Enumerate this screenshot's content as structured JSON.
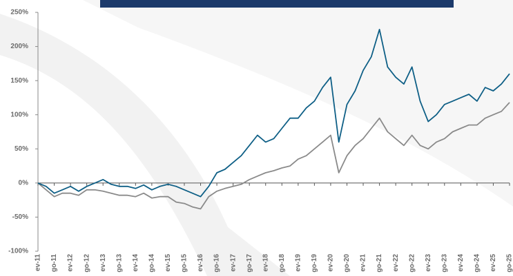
{
  "chart_data": {
    "type": "line",
    "categories": [
      "ev-11",
      null,
      "go-11",
      null,
      "ev-12",
      null,
      "go-12",
      null,
      "ev-13",
      null,
      "go-13",
      null,
      "ev-14",
      null,
      "go-14",
      null,
      "ev-15",
      null,
      "go-15",
      null,
      "ev-16",
      null,
      "go-16",
      null,
      "ev-17",
      null,
      "go-17",
      null,
      "ev-18",
      null,
      "go-18",
      null,
      "ev-19",
      null,
      "go-19",
      null,
      "ev-20",
      null,
      "go-20",
      null,
      "ev-21",
      null,
      "go-21",
      null,
      "ev-22",
      null,
      "go-22",
      null,
      "ev-23",
      null,
      "go-23",
      null,
      "ev-24",
      null,
      "go-24",
      null,
      "ev-25",
      null,
      "go-25"
    ],
    "series": [
      {
        "color": "#8a8a8a",
        "values": [
          0,
          -10,
          -20,
          -15,
          -15,
          -18,
          -10,
          -10,
          -12,
          -15,
          -18,
          -18,
          -20,
          -15,
          -22,
          -20,
          -20,
          -28,
          -30,
          -35,
          -38,
          -20,
          -12,
          -8,
          -5,
          -2,
          5,
          10,
          15,
          18,
          22,
          25,
          35,
          40,
          50,
          60,
          70,
          15,
          40,
          55,
          65,
          80,
          95,
          75,
          65,
          55,
          70,
          55,
          50,
          60,
          65,
          75,
          80,
          85,
          85,
          95,
          100,
          105,
          118
        ]
      },
      {
        "color": "#0e5f86",
        "values": [
          0,
          -5,
          -15,
          -10,
          -5,
          -12,
          -5,
          0,
          5,
          -2,
          -5,
          -5,
          -8,
          -3,
          -10,
          -5,
          -2,
          -5,
          -10,
          -15,
          -20,
          -5,
          15,
          20,
          30,
          40,
          55,
          70,
          60,
          65,
          80,
          95,
          95,
          110,
          120,
          140,
          155,
          60,
          115,
          135,
          165,
          185,
          225,
          170,
          155,
          145,
          170,
          120,
          90,
          100,
          115,
          120,
          125,
          130,
          120,
          140,
          135,
          145,
          160
        ]
      }
    ],
    "ylim": [
      -100,
      250
    ],
    "yticks": [
      {
        "value": -100,
        "label": "-100%"
      },
      {
        "value": -50,
        "label": "-50%"
      },
      {
        "value": 0,
        "label": "0%"
      },
      {
        "value": 50,
        "label": "50%"
      },
      {
        "value": 100,
        "label": "100%"
      },
      {
        "value": 150,
        "label": "150%"
      },
      {
        "value": 200,
        "label": "200%"
      },
      {
        "value": 250,
        "label": "250%"
      }
    ]
  }
}
